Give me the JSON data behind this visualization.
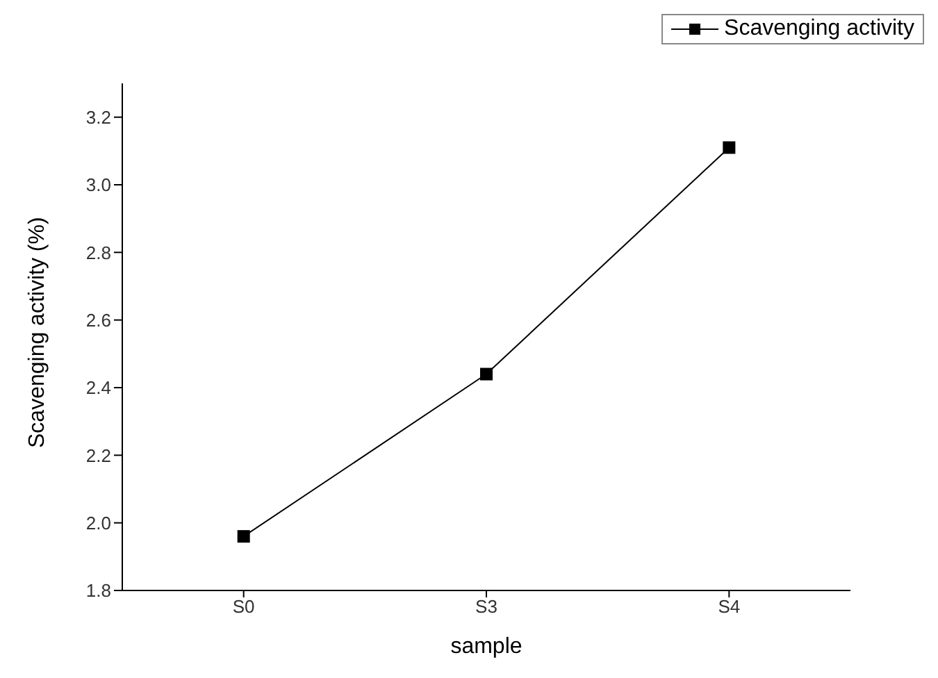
{
  "chart_data": {
    "type": "line",
    "xlabel": "sample",
    "ylabel": "Scavenging activity (%)",
    "categories": [
      "S0",
      "S3",
      "S4"
    ],
    "series": [
      {
        "name": "Scavenging activity",
        "color": "#000000",
        "values": [
          1.96,
          2.44,
          3.11
        ]
      }
    ],
    "ylim": [
      1.8,
      3.3
    ],
    "yticks": [
      1.8,
      {
        "value": 2,
        "label": "2.0"
      },
      2.2,
      2.4,
      2.6,
      2.8,
      {
        "value": 3,
        "label": "3.0"
      },
      3.2
    ],
    "marker": "square",
    "line_style": "solid",
    "grid": false,
    "legend": "top right"
  }
}
